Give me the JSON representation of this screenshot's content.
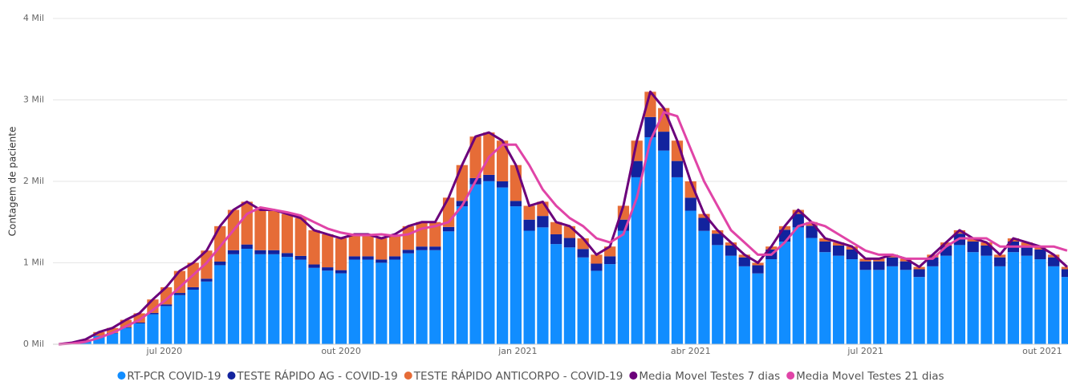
{
  "chart_data": {
    "type": "bar",
    "y_label": "Contagem de paciente",
    "x": [
      "2020-05-04",
      "2020-05-11",
      "2020-05-18",
      "2020-05-25",
      "2020-06-01",
      "2020-06-08",
      "2020-06-15",
      "2020-06-22",
      "2020-06-29",
      "2020-07-06",
      "2020-07-13",
      "2020-07-20",
      "2020-07-27",
      "2020-08-03",
      "2020-08-10",
      "2020-08-17",
      "2020-08-24",
      "2020-08-31",
      "2020-09-07",
      "2020-09-14",
      "2020-09-21",
      "2020-09-28",
      "2020-10-05",
      "2020-10-12",
      "2020-10-19",
      "2020-10-26",
      "2020-11-02",
      "2020-11-09",
      "2020-11-16",
      "2020-11-23",
      "2020-11-30",
      "2020-12-07",
      "2020-12-14",
      "2020-12-21",
      "2020-12-28",
      "2021-01-04",
      "2021-01-11",
      "2021-01-18",
      "2021-01-25",
      "2021-02-01",
      "2021-02-08",
      "2021-02-15",
      "2021-02-22",
      "2021-03-01",
      "2021-03-08",
      "2021-03-15",
      "2021-03-22",
      "2021-03-29",
      "2021-04-05",
      "2021-04-12",
      "2021-04-19",
      "2021-04-26",
      "2021-05-03",
      "2021-05-10",
      "2021-05-17",
      "2021-05-24",
      "2021-05-31",
      "2021-06-07",
      "2021-06-14",
      "2021-06-21",
      "2021-06-28",
      "2021-07-05",
      "2021-07-12",
      "2021-07-19",
      "2021-07-26",
      "2021-08-02",
      "2021-08-09",
      "2021-08-16",
      "2021-08-23",
      "2021-08-30",
      "2021-09-06",
      "2021-09-13",
      "2021-09-20",
      "2021-09-27",
      "2021-10-04",
      "2021-10-11"
    ],
    "xlim": [
      "2020-05-04",
      "2021-10-14"
    ],
    "xticks": [
      {
        "value": "2020-07-01",
        "label": "jul 2020"
      },
      {
        "value": "2020-10-01",
        "label": "out 2020"
      },
      {
        "value": "2021-01-01",
        "label": "jan 2021"
      },
      {
        "value": "2021-04-01",
        "label": "abr 2021"
      },
      {
        "value": "2021-07-01",
        "label": "jul 2021"
      },
      {
        "value": "2021-10-01",
        "label": "out 2021"
      }
    ],
    "ylim": [
      0,
      4000
    ],
    "yticks": [
      {
        "value": 0,
        "label": "0 Mil"
      },
      {
        "value": 1000,
        "label": "1 Mil"
      },
      {
        "value": 2000,
        "label": "2 Mil"
      },
      {
        "value": 3000,
        "label": "3 Mil"
      },
      {
        "value": 4000,
        "label": "4 Mil"
      }
    ],
    "grid": true,
    "series": [
      {
        "name": "RT-PCR COVID-19",
        "color": "#118DFF",
        "kind": "bar",
        "values": [
          0,
          13,
          40,
          100,
          134,
          201,
          255,
          368,
          469,
          603,
          670,
          770,
          971,
          1105,
          1172,
          1105,
          1105,
          1072,
          1038,
          938,
          904,
          871,
          1039,
          1039,
          1001,
          1039,
          1116,
          1155,
          1155,
          1386,
          1694,
          1963,
          2002,
          1925,
          1694,
          1394,
          1435,
          1230,
          1189,
          1066,
          902,
          984,
          1394,
          2050,
          2542,
          2378,
          2050,
          1640,
          1392,
          1218,
          1087,
          957,
          870,
          1044,
          1261,
          1435,
          1305,
          1131,
          1087,
          1044,
          913,
          913,
          957,
          913,
          826,
          957,
          1087,
          1218,
          1131,
          1087,
          957,
          1131,
          1087,
          1044,
          957,
          826
        ]
      },
      {
        "name": "TESTE RÁPIDO AG - COVID-19",
        "color": "#12239E",
        "kind": "bar",
        "values": [
          0,
          1,
          2,
          5,
          6,
          9,
          11,
          17,
          21,
          27,
          30,
          35,
          44,
          50,
          53,
          50,
          50,
          48,
          47,
          42,
          41,
          39,
          41,
          41,
          39,
          41,
          44,
          45,
          45,
          54,
          66,
          77,
          78,
          75,
          66,
          136,
          140,
          120,
          116,
          104,
          88,
          96,
          136,
          200,
          248,
          232,
          200,
          160,
          160,
          140,
          125,
          110,
          100,
          120,
          145,
          165,
          150,
          130,
          125,
          120,
          105,
          105,
          110,
          105,
          95,
          110,
          125,
          140,
          130,
          125,
          110,
          130,
          125,
          120,
          110,
          95
        ]
      },
      {
        "name": "TESTE RÁPIDO ANTICORPO - COVID-19",
        "color": "#E66C37",
        "kind": "bar",
        "values": [
          0,
          6,
          18,
          45,
          60,
          90,
          114,
          165,
          210,
          270,
          300,
          345,
          435,
          495,
          525,
          495,
          495,
          480,
          465,
          420,
          405,
          390,
          270,
          270,
          260,
          270,
          290,
          300,
          300,
          360,
          440,
          510,
          520,
          500,
          440,
          170,
          175,
          150,
          145,
          130,
          110,
          120,
          170,
          250,
          310,
          290,
          250,
          200,
          48,
          42,
          38,
          33,
          30,
          36,
          44,
          50,
          45,
          39,
          38,
          36,
          32,
          32,
          33,
          32,
          29,
          33,
          38,
          42,
          39,
          38,
          33,
          39,
          38,
          36,
          33,
          29
        ]
      },
      {
        "name": "Media Movel Testes 7 dias",
        "color": "#6B007B",
        "kind": "line",
        "values": [
          0,
          20,
          60,
          150,
          200,
          300,
          380,
          550,
          700,
          900,
          1000,
          1150,
          1450,
          1650,
          1750,
          1650,
          1650,
          1600,
          1550,
          1400,
          1350,
          1300,
          1350,
          1350,
          1300,
          1350,
          1450,
          1500,
          1500,
          1800,
          2200,
          2550,
          2600,
          2500,
          2200,
          1700,
          1750,
          1500,
          1450,
          1300,
          1100,
          1200,
          1700,
          2500,
          3100,
          2900,
          2500,
          2000,
          1600,
          1400,
          1250,
          1100,
          1000,
          1200,
          1450,
          1650,
          1500,
          1300,
          1250,
          1200,
          1050,
          1050,
          1100,
          1050,
          950,
          1100,
          1250,
          1400,
          1300,
          1250,
          1100,
          1300,
          1250,
          1200,
          1100,
          950
        ]
      },
      {
        "name": "Media Movel Testes 21 dias",
        "color": "#E044A7",
        "kind": "line",
        "values": [
          0,
          10,
          30,
          80,
          140,
          220,
          300,
          420,
          550,
          700,
          850,
          1000,
          1200,
          1400,
          1600,
          1680,
          1650,
          1620,
          1580,
          1500,
          1420,
          1370,
          1340,
          1340,
          1350,
          1330,
          1350,
          1420,
          1450,
          1500,
          1700,
          2000,
          2300,
          2450,
          2450,
          2200,
          1900,
          1700,
          1550,
          1450,
          1300,
          1250,
          1350,
          1800,
          2500,
          2850,
          2800,
          2400,
          2000,
          1700,
          1400,
          1250,
          1100,
          1100,
          1250,
          1450,
          1500,
          1450,
          1350,
          1250,
          1150,
          1100,
          1100,
          1050,
          1050,
          1050,
          1200,
          1300,
          1300,
          1300,
          1200,
          1200,
          1200,
          1200,
          1200,
          1150
        ]
      }
    ]
  }
}
